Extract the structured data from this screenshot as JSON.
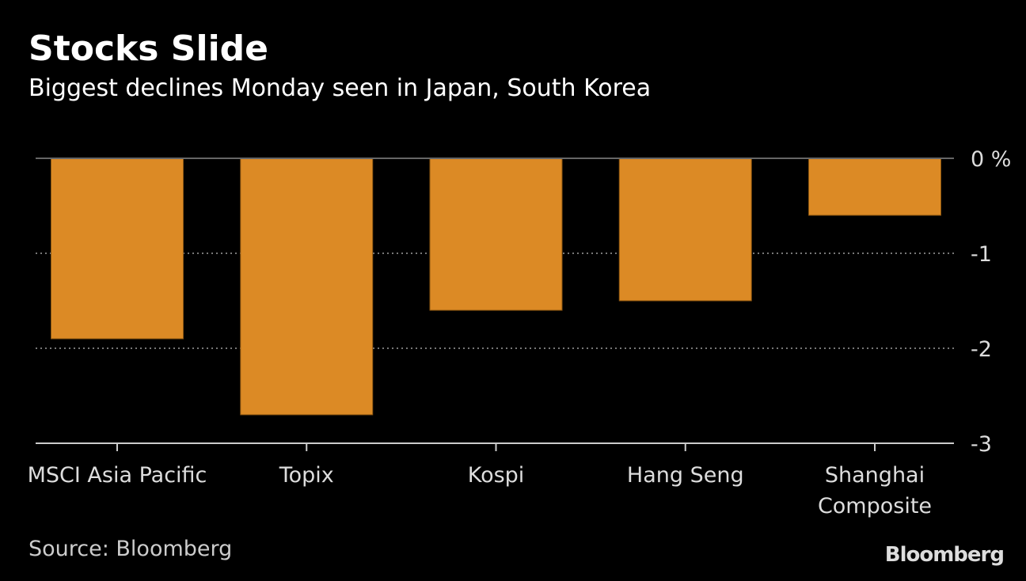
{
  "title": "Stocks Slide",
  "subtitle": "Biggest declines Monday seen in Japan, South Korea",
  "source": "Source: Bloomberg",
  "logo": "Bloomberg",
  "chart_data": {
    "type": "bar",
    "title": "Stocks Slide",
    "subtitle": "Biggest declines Monday seen in Japan, South Korea",
    "categories": [
      [
        "MSCI Asia Pacific"
      ],
      [
        "Topix"
      ],
      [
        "Kospi"
      ],
      [
        "Hang Seng"
      ],
      [
        "Shanghai",
        "Composite"
      ]
    ],
    "values": [
      -1.9,
      -2.7,
      -1.6,
      -1.5,
      -0.6
    ],
    "ylim": [
      -3,
      0
    ],
    "yticks": [
      0,
      -1,
      -2,
      -3
    ],
    "ytick_labels": [
      "0 %",
      "-1",
      "-2",
      "-3"
    ],
    "ylabel": "",
    "xlabel": "",
    "yaxis_side": "right",
    "grid": true,
    "bar_color": "#dc8a25"
  }
}
